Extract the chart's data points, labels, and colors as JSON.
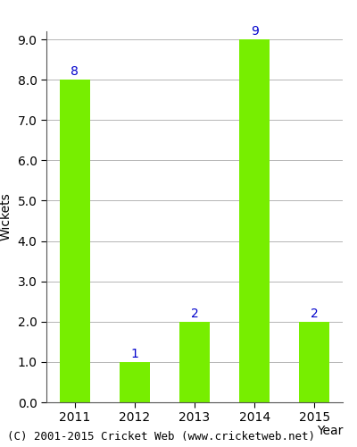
{
  "years": [
    "2011",
    "2012",
    "2013",
    "2014",
    "2015"
  ],
  "values": [
    8,
    1,
    2,
    9,
    2
  ],
  "bar_color": "#77EE00",
  "bar_edge_color": "#77EE00",
  "xlabel": "Year",
  "ylabel": "Wickets",
  "ylim": [
    0,
    9.2
  ],
  "yticks": [
    0.0,
    1.0,
    2.0,
    3.0,
    4.0,
    5.0,
    6.0,
    7.0,
    8.0,
    9.0
  ],
  "label_color": "#0000CC",
  "label_fontsize": 10,
  "axis_label_fontsize": 10,
  "tick_fontsize": 10,
  "footer_text": "(C) 2001-2015 Cricket Web (www.cricketweb.net)",
  "footer_fontsize": 9,
  "background_color": "#ffffff",
  "grid_color": "#aaaaaa",
  "spine_color": "#555555"
}
